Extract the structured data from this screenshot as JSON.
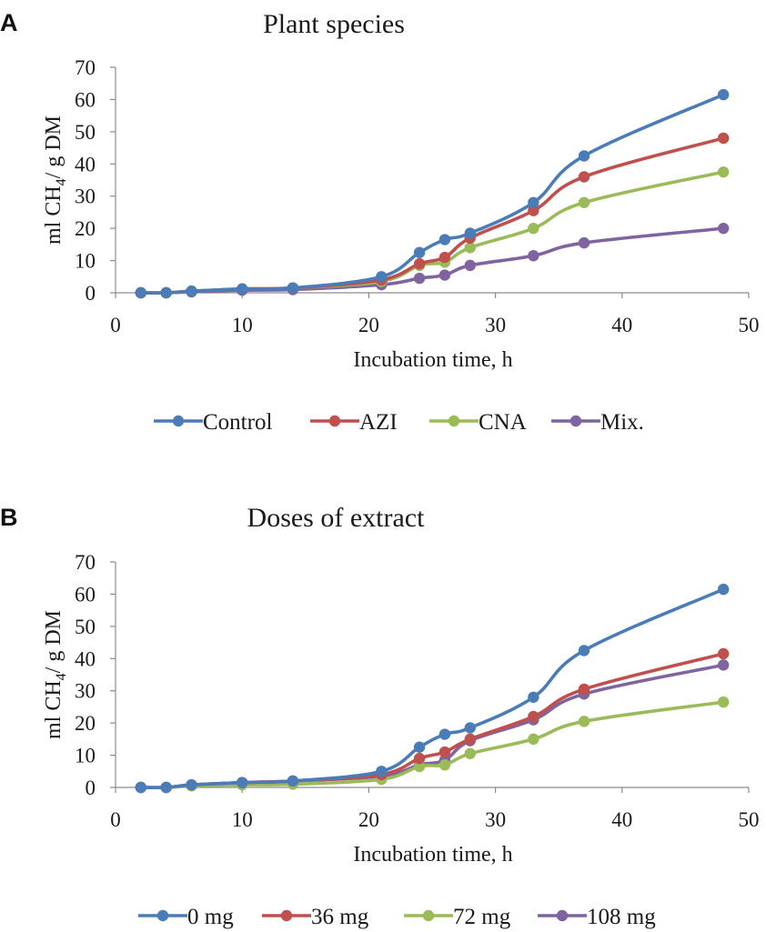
{
  "chart_data": [
    {
      "panel": "A",
      "type": "line",
      "title": "Plant species",
      "xlabel": "Incubation time, h",
      "ylabel_main": "ml CH",
      "ylabel_sub": "4",
      "ylabel_rest": "/ g DM",
      "xlim": [
        0,
        50
      ],
      "ylim": [
        0,
        70
      ],
      "xticks": [
        "0",
        "10",
        "20",
        "30",
        "40",
        "50"
      ],
      "yticks": [
        "0",
        "10",
        "20",
        "30",
        "40",
        "50",
        "60",
        "70"
      ],
      "x": [
        2,
        4,
        6,
        10,
        14,
        21,
        24,
        26,
        28,
        33,
        37,
        48
      ],
      "series": [
        {
          "name": "Control",
          "color": "#4a7db8",
          "values": [
            0,
            0,
            0.5,
            1.2,
            1.5,
            5,
            12.5,
            16.5,
            18.5,
            28,
            42.5,
            61.5
          ]
        },
        {
          "name": "AZI",
          "color": "#c0504d",
          "values": [
            0,
            0,
            0.5,
            1.2,
            1.5,
            4,
            9,
            11,
            17,
            25.5,
            36,
            48
          ]
        },
        {
          "name": "CNA",
          "color": "#9bbb59",
          "values": [
            0,
            0,
            0.5,
            1.2,
            1.5,
            3.5,
            8.5,
            9.5,
            14,
            20,
            28,
            37.5
          ]
        },
        {
          "name": "Mix.",
          "color": "#8064a2",
          "values": [
            0,
            0,
            0.3,
            0.8,
            1,
            2.5,
            4.5,
            5.5,
            8.5,
            11.5,
            15.5,
            20
          ]
        }
      ]
    },
    {
      "panel": "B",
      "type": "line",
      "title": "Doses of extract",
      "xlabel": "Incubation time, h",
      "ylabel_main": "ml CH",
      "ylabel_sub": "4",
      "ylabel_rest": "/ g DM",
      "xlim": [
        0,
        50
      ],
      "ylim": [
        0,
        70
      ],
      "xticks": [
        "0",
        "10",
        "20",
        "30",
        "40",
        "50"
      ],
      "yticks": [
        "0",
        "10",
        "20",
        "30",
        "40",
        "50",
        "60",
        "70"
      ],
      "x": [
        2,
        4,
        6,
        10,
        14,
        21,
        24,
        26,
        28,
        33,
        37,
        48
      ],
      "series": [
        {
          "name": "0 mg",
          "color": "#4a7db8",
          "values": [
            0,
            0,
            0.8,
            1.5,
            2,
            5,
            12.5,
            16.5,
            18.5,
            28,
            42.5,
            61.5
          ]
        },
        {
          "name": "36 mg",
          "color": "#c0504d",
          "values": [
            0,
            0,
            0.8,
            1.5,
            2,
            4,
            9,
            11,
            15,
            22,
            30.5,
            41.5
          ]
        },
        {
          "name": "72 mg",
          "color": "#9bbb59",
          "values": [
            0,
            0,
            0.5,
            0.8,
            1,
            2.5,
            6.5,
            7,
            10.5,
            15,
            20.5,
            26.5
          ]
        },
        {
          "name": "108 mg",
          "color": "#8064a2",
          "values": [
            0,
            0,
            0.8,
            1.5,
            2,
            3.5,
            7,
            8.5,
            14.5,
            21,
            29,
            38
          ]
        }
      ]
    }
  ]
}
